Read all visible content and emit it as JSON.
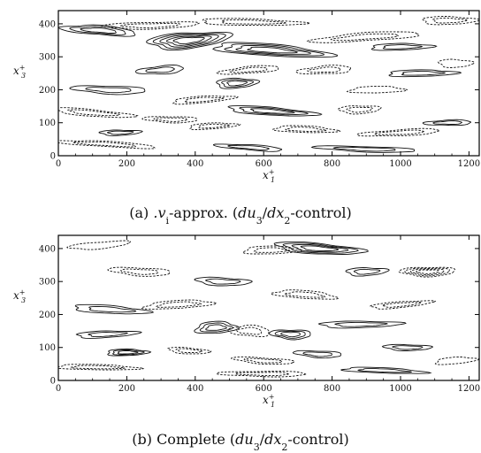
{
  "chart_data": [
    {
      "type": "contour",
      "id": "a",
      "caption": "(a)  vi-approx. (du3/dx2-control)",
      "caption_parts": [
        "(a)  ",
        ".v",
        "i",
        "-approx. (",
        "du",
        "3",
        "/",
        "dx",
        "2",
        "-control)"
      ],
      "xlabel": "x1+",
      "ylabel": "x3+",
      "xlabel_parts": [
        "x",
        "1",
        "+"
      ],
      "ylabel_parts": [
        "x",
        "3",
        "+"
      ],
      "xlim": [
        0,
        1230
      ],
      "ylim": [
        0,
        440
      ],
      "xticks": [
        "0",
        "200",
        "400",
        "600",
        "800",
        "1000",
        "1200"
      ],
      "yticks": [
        "0",
        "100",
        "200",
        "300",
        "400"
      ],
      "levels": {
        "solid": "positive",
        "dashed": "negative"
      },
      "structures": [
        {
          "x": 120,
          "z": 380,
          "rx": 110,
          "rz": 14,
          "sign": 1,
          "n": 3
        },
        {
          "x": 380,
          "z": 350,
          "rx": 120,
          "rz": 24,
          "sign": 1,
          "n": 5
        },
        {
          "x": 620,
          "z": 320,
          "rx": 170,
          "rz": 18,
          "sign": 1,
          "n": 4
        },
        {
          "x": 270,
          "z": 395,
          "rx": 140,
          "rz": 10,
          "sign": -1,
          "n": 2
        },
        {
          "x": 560,
          "z": 405,
          "rx": 150,
          "rz": 10,
          "sign": -1,
          "n": 2
        },
        {
          "x": 900,
          "z": 360,
          "rx": 160,
          "rz": 12,
          "sign": -1,
          "n": 2
        },
        {
          "x": 1000,
          "z": 330,
          "rx": 90,
          "rz": 10,
          "sign": 1,
          "n": 2
        },
        {
          "x": 1140,
          "z": 410,
          "rx": 80,
          "rz": 12,
          "sign": -1,
          "n": 2
        },
        {
          "x": 300,
          "z": 260,
          "rx": 70,
          "rz": 12,
          "sign": 1,
          "n": 2
        },
        {
          "x": 520,
          "z": 220,
          "rx": 60,
          "rz": 15,
          "sign": 1,
          "n": 3
        },
        {
          "x": 560,
          "z": 260,
          "rx": 90,
          "rz": 10,
          "sign": -1,
          "n": 2
        },
        {
          "x": 780,
          "z": 260,
          "rx": 80,
          "rz": 12,
          "sign": -1,
          "n": 2
        },
        {
          "x": 1060,
          "z": 250,
          "rx": 100,
          "rz": 10,
          "sign": 1,
          "n": 2
        },
        {
          "x": 1160,
          "z": 280,
          "rx": 50,
          "rz": 12,
          "sign": -1,
          "n": 1
        },
        {
          "x": 150,
          "z": 200,
          "rx": 110,
          "rz": 12,
          "sign": 1,
          "n": 2
        },
        {
          "x": 420,
          "z": 170,
          "rx": 90,
          "rz": 10,
          "sign": -1,
          "n": 2
        },
        {
          "x": 930,
          "z": 200,
          "rx": 80,
          "rz": 10,
          "sign": -1,
          "n": 1
        },
        {
          "x": 100,
          "z": 130,
          "rx": 120,
          "rz": 10,
          "sign": -1,
          "n": 2
        },
        {
          "x": 330,
          "z": 110,
          "rx": 80,
          "rz": 9,
          "sign": -1,
          "n": 2
        },
        {
          "x": 620,
          "z": 135,
          "rx": 130,
          "rz": 12,
          "sign": 1,
          "n": 3
        },
        {
          "x": 880,
          "z": 140,
          "rx": 60,
          "rz": 12,
          "sign": -1,
          "n": 2
        },
        {
          "x": 1140,
          "z": 100,
          "rx": 70,
          "rz": 8,
          "sign": 1,
          "n": 2
        },
        {
          "x": 180,
          "z": 70,
          "rx": 60,
          "rz": 8,
          "sign": 1,
          "n": 2
        },
        {
          "x": 450,
          "z": 90,
          "rx": 70,
          "rz": 9,
          "sign": -1,
          "n": 2
        },
        {
          "x": 720,
          "z": 80,
          "rx": 90,
          "rz": 10,
          "sign": -1,
          "n": 2
        },
        {
          "x": 1000,
          "z": 70,
          "rx": 120,
          "rz": 9,
          "sign": -1,
          "n": 2
        },
        {
          "x": 140,
          "z": 35,
          "rx": 150,
          "rz": 8,
          "sign": -1,
          "n": 2
        },
        {
          "x": 560,
          "z": 25,
          "rx": 100,
          "rz": 8,
          "sign": 1,
          "n": 2
        },
        {
          "x": 900,
          "z": 20,
          "rx": 150,
          "rz": 8,
          "sign": 1,
          "n": 2
        }
      ]
    },
    {
      "type": "contour",
      "id": "b",
      "caption": "(b)  Complete (du3/dx2-control)",
      "caption_parts": [
        "(b)  Complete (",
        "du",
        "3",
        "/",
        "dx",
        "2",
        "-control)"
      ],
      "xlabel": "x1+",
      "ylabel": "x3+",
      "xlabel_parts": [
        "x",
        "1",
        "+"
      ],
      "ylabel_parts": [
        "x",
        "3",
        "+"
      ],
      "xlim": [
        0,
        1230
      ],
      "ylim": [
        0,
        440
      ],
      "xticks": [
        "0",
        "200",
        "400",
        "600",
        "800",
        "1000",
        "1200"
      ],
      "yticks": [
        "0",
        "100",
        "200",
        "300",
        "400"
      ],
      "levels": {
        "solid": "positive",
        "dashed": "negative"
      },
      "structures": [
        {
          "x": 760,
          "z": 400,
          "rx": 130,
          "rz": 16,
          "sign": 1,
          "n": 4
        },
        {
          "x": 620,
          "z": 395,
          "rx": 80,
          "rz": 12,
          "sign": -1,
          "n": 2
        },
        {
          "x": 1080,
          "z": 330,
          "rx": 80,
          "rz": 14,
          "sign": -1,
          "n": 4
        },
        {
          "x": 240,
          "z": 330,
          "rx": 90,
          "rz": 12,
          "sign": -1,
          "n": 2
        },
        {
          "x": 480,
          "z": 300,
          "rx": 80,
          "rz": 12,
          "sign": 1,
          "n": 2
        },
        {
          "x": 120,
          "z": 410,
          "rx": 90,
          "rz": 10,
          "sign": -1,
          "n": 1
        },
        {
          "x": 900,
          "z": 330,
          "rx": 60,
          "rz": 12,
          "sign": 1,
          "n": 2
        },
        {
          "x": 350,
          "z": 230,
          "rx": 100,
          "rz": 12,
          "sign": -1,
          "n": 2
        },
        {
          "x": 150,
          "z": 215,
          "rx": 110,
          "rz": 12,
          "sign": 1,
          "n": 2
        },
        {
          "x": 720,
          "z": 260,
          "rx": 90,
          "rz": 12,
          "sign": -1,
          "n": 2
        },
        {
          "x": 1000,
          "z": 230,
          "rx": 90,
          "rz": 9,
          "sign": -1,
          "n": 2
        },
        {
          "x": 460,
          "z": 160,
          "rx": 60,
          "rz": 18,
          "sign": 1,
          "n": 3
        },
        {
          "x": 560,
          "z": 150,
          "rx": 60,
          "rz": 16,
          "sign": -1,
          "n": 2
        },
        {
          "x": 680,
          "z": 140,
          "rx": 60,
          "rz": 14,
          "sign": 1,
          "n": 3
        },
        {
          "x": 880,
          "z": 170,
          "rx": 120,
          "rz": 10,
          "sign": 1,
          "n": 2
        },
        {
          "x": 140,
          "z": 140,
          "rx": 90,
          "rz": 10,
          "sign": 1,
          "n": 2
        },
        {
          "x": 200,
          "z": 85,
          "rx": 60,
          "rz": 10,
          "sign": 1,
          "n": 3
        },
        {
          "x": 380,
          "z": 90,
          "rx": 60,
          "rz": 9,
          "sign": -1,
          "n": 2
        },
        {
          "x": 760,
          "z": 80,
          "rx": 70,
          "rz": 10,
          "sign": 1,
          "n": 2
        },
        {
          "x": 1020,
          "z": 100,
          "rx": 70,
          "rz": 9,
          "sign": 1,
          "n": 2
        },
        {
          "x": 600,
          "z": 60,
          "rx": 90,
          "rz": 9,
          "sign": -1,
          "n": 2
        },
        {
          "x": 110,
          "z": 40,
          "rx": 120,
          "rz": 8,
          "sign": -1,
          "n": 2
        },
        {
          "x": 600,
          "z": 20,
          "rx": 130,
          "rz": 8,
          "sign": -1,
          "n": 2
        },
        {
          "x": 950,
          "z": 30,
          "rx": 120,
          "rz": 8,
          "sign": 1,
          "n": 2
        },
        {
          "x": 1160,
          "z": 60,
          "rx": 60,
          "rz": 10,
          "sign": -1,
          "n": 1
        }
      ]
    }
  ]
}
